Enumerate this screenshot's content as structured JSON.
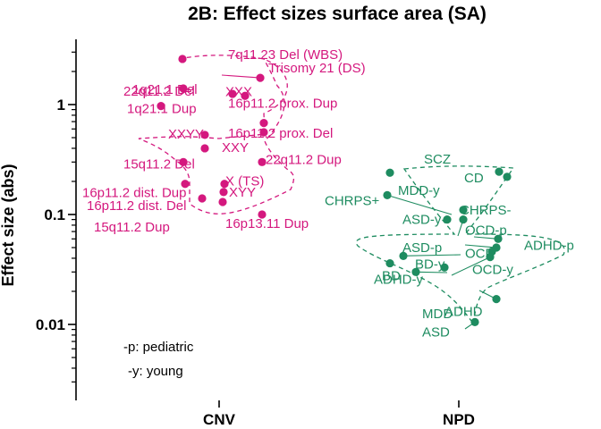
{
  "chart_data": {
    "type": "scatter",
    "title": "2B: Effect sizes surface area (SA)",
    "ylabel": "Effect size (abs)",
    "yscale": "log",
    "ylim": [
      0.0025,
      3.5
    ],
    "yticks": [
      {
        "value": 1,
        "label": "1"
      },
      {
        "value": 0.1,
        "label": "0.1"
      },
      {
        "value": 0.01,
        "label": "0.01"
      }
    ],
    "categories": [
      "CNV",
      "NPD"
    ],
    "notes": [
      "-p: pediatric",
      "-y: young"
    ],
    "colors": {
      "CNV": "#d4187e",
      "NPD": "#1e8c60"
    },
    "series": [
      {
        "group": "CNV",
        "points": [
          {
            "label": "7q11.23 Del (WBS)",
            "y": 2.6
          },
          {
            "label": "Trisomy 21 (DS)",
            "y": 1.75
          },
          {
            "label": "1q21.1 Del",
            "y": 1.4
          },
          {
            "label": "22q11.2 Del",
            "y": 1.25
          },
          {
            "label": "XXX",
            "y": 1.2
          },
          {
            "label": "1q21.1 Dup",
            "y": 0.97
          },
          {
            "label": "16p11.2 prox. Dup",
            "y": 0.68
          },
          {
            "label": "16p11.2 prox. Del",
            "y": 0.56
          },
          {
            "label": "XXYY",
            "y": 0.53
          },
          {
            "label": "XXY",
            "y": 0.4
          },
          {
            "label": "22q11.2 Dup",
            "y": 0.3
          },
          {
            "label": "15q11.2 Del",
            "y": 0.3
          },
          {
            "label": "X (TS)",
            "y": 0.19
          },
          {
            "label": "16p11.2 dist. Dup",
            "y": 0.19
          },
          {
            "label": "XYY",
            "y": 0.16
          },
          {
            "label": "16p11.2 dist. Del",
            "y": 0.14
          },
          {
            "label": "15q11.2 Dup",
            "y": 0.13
          },
          {
            "label": "16p13.11 Dup",
            "y": 0.1
          }
        ]
      },
      {
        "group": "NPD",
        "points": [
          {
            "label": "SCZ",
            "y": 0.24
          },
          {
            "label": "CD",
            "y": 0.245
          },
          {
            "label": "MDD-y",
            "y": 0.22
          },
          {
            "label": "CHRPS+",
            "y": 0.15
          },
          {
            "label": "CHRPS-",
            "y": 0.11
          },
          {
            "label": "ASD-y",
            "y": 0.09
          },
          {
            "label": "OCD-p",
            "y": 0.09
          },
          {
            "label": "ADHD-p",
            "y": 0.06
          },
          {
            "label": "ASD-p",
            "y": 0.05
          },
          {
            "label": "OCD",
            "y": 0.046
          },
          {
            "label": "BD",
            "y": 0.036
          },
          {
            "label": "BD-y",
            "y": 0.042
          },
          {
            "label": "OCD-y",
            "y": 0.041
          },
          {
            "label": "ADHD-y",
            "y": 0.03
          },
          {
            "label": "ADHD",
            "y": 0.017
          },
          {
            "label": "MDD",
            "y": 0.033
          },
          {
            "label": "ASD",
            "y": 0.0105
          }
        ]
      }
    ]
  }
}
